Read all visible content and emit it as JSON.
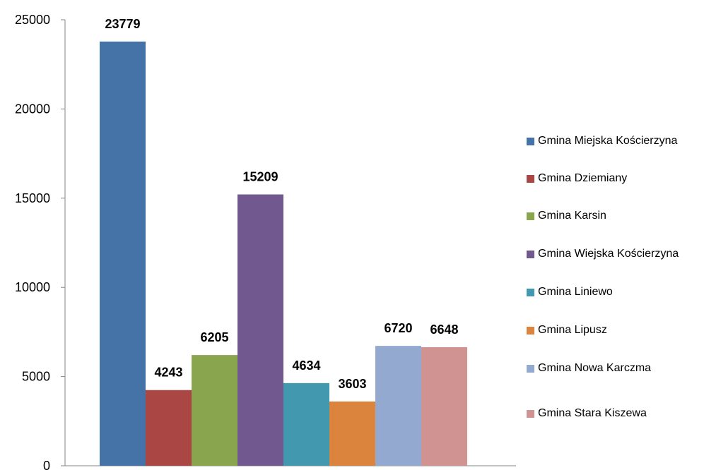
{
  "chart_data": {
    "type": "bar",
    "categories": [
      "Gmina Miejska Kościerzyna",
      "Gmina Dziemiany",
      "Gmina Karsin",
      "Gmina Wiejska Kościerzyna",
      "Gmina Liniewo",
      "Gmina Lipusz",
      "Gmina Nowa Karczma",
      "Gmina Stara Kiszewa"
    ],
    "values": [
      23779,
      4243,
      6205,
      15209,
      4634,
      3603,
      6720,
      6648
    ],
    "data_labels": [
      "23779",
      "4243",
      "6205",
      "15209",
      "4634",
      "3603",
      "6720",
      "6648"
    ],
    "colors": [
      "#4572A7",
      "#AA4643",
      "#89A54E",
      "#71588F",
      "#4198AF",
      "#DB843D",
      "#93A9CF",
      "#D19392"
    ],
    "ylim": [
      0,
      25000
    ],
    "yticks": [
      "0",
      "5000",
      "10000",
      "15000",
      "20000",
      "25000"
    ],
    "ytick_values": [
      0,
      5000,
      10000,
      15000,
      20000,
      25000
    ],
    "grid": false,
    "legend_position": "right",
    "title": "",
    "xlabel": "",
    "ylabel": ""
  }
}
